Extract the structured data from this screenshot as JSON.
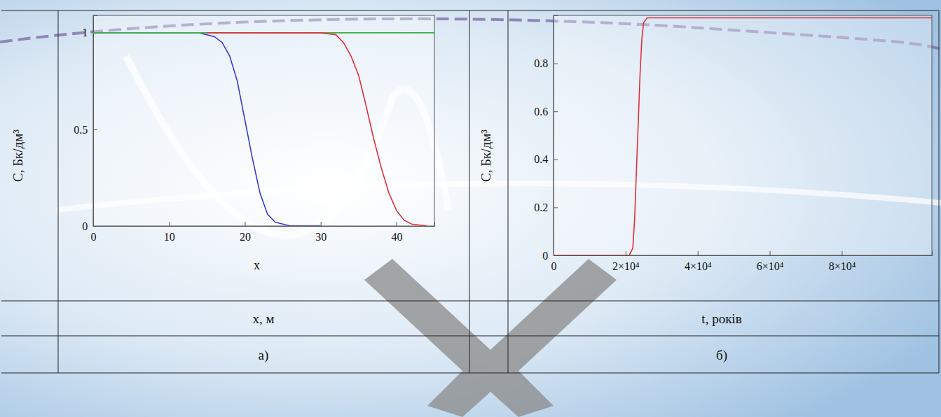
{
  "chart_data": [
    {
      "type": "line",
      "x_label": "x, м",
      "y_label": "C, Бк/дм³",
      "panel_label": "а)",
      "annotations": [
        "x"
      ],
      "xlim": [
        0,
        45
      ],
      "ylim": [
        0,
        1.09
      ],
      "xticks": [
        0,
        10,
        20,
        30,
        40
      ],
      "yticks": [
        0,
        0.5,
        1
      ],
      "series": [
        {
          "color": "#3a3acf",
          "line_style": "solid",
          "x": [
            0,
            10,
            14,
            16,
            17,
            18,
            19,
            20,
            21,
            22,
            23,
            24,
            25,
            26,
            30
          ],
          "values": [
            1,
            1,
            1,
            0.98,
            0.95,
            0.88,
            0.75,
            0.55,
            0.35,
            0.17,
            0.06,
            0.02,
            0.01,
            0,
            0
          ]
        },
        {
          "color": "#3cb043",
          "line_style": "solid",
          "x": [
            0,
            45
          ],
          "values": [
            1,
            1
          ]
        },
        {
          "color": "#e0303a",
          "line_style": "solid",
          "x": [
            15,
            30,
            32,
            33,
            34,
            35,
            36,
            37,
            38,
            39,
            40,
            41,
            42,
            44
          ],
          "values": [
            1,
            1,
            0.99,
            0.95,
            0.88,
            0.78,
            0.62,
            0.45,
            0.3,
            0.17,
            0.08,
            0.03,
            0.01,
            0
          ]
        }
      ]
    },
    {
      "type": "line",
      "x_label": "t, років",
      "y_label": "C, Бк/дм³",
      "panel_label": "б)",
      "xlim": [
        0,
        105000
      ],
      "ylim": [
        0,
        1
      ],
      "xticks": [
        0,
        {
          "value": 20000,
          "label": "2×10⁴"
        },
        {
          "value": 40000,
          "label": "4×10⁴"
        },
        {
          "value": 60000,
          "label": "6×10⁴"
        },
        {
          "value": 80000,
          "label": "8×10⁴"
        }
      ],
      "yticks": [
        0,
        0.2,
        0.4,
        0.6,
        0.8
      ],
      "series": [
        {
          "color": "#e0303a",
          "line_style": "solid",
          "x": [
            0,
            21000,
            22000,
            22500,
            23000,
            23500,
            24000,
            24500,
            25000,
            26000,
            105000
          ],
          "values": [
            0,
            0,
            0.03,
            0.15,
            0.35,
            0.55,
            0.75,
            0.9,
            0.97,
            0.99,
            0.99
          ]
        }
      ]
    }
  ]
}
